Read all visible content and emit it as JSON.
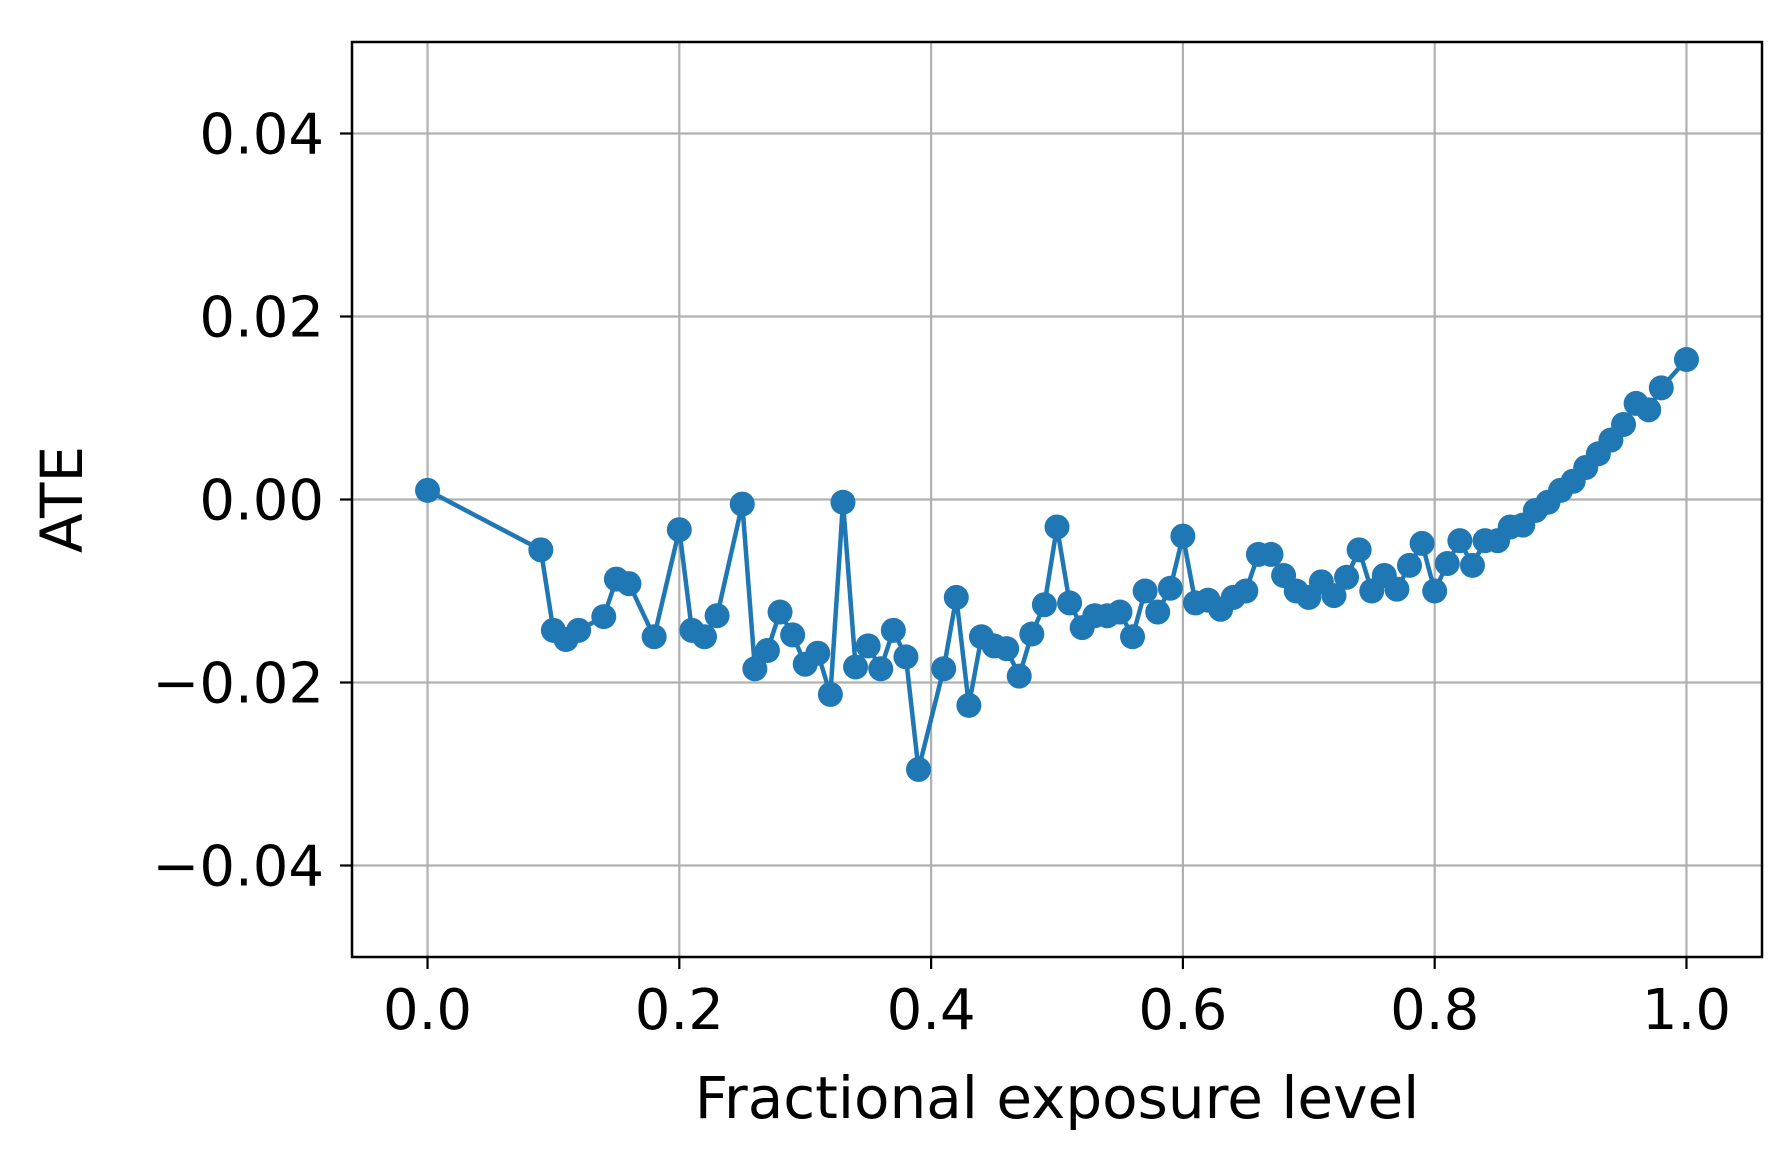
{
  "chart_data": {
    "type": "line",
    "title": "",
    "xlabel": "Fractional exposure level",
    "ylabel": "ATE",
    "xlim": [
      -0.06,
      1.06
    ],
    "ylim": [
      -0.05,
      0.05
    ],
    "xticks": [
      0.0,
      0.2,
      0.4,
      0.6,
      0.8,
      1.0
    ],
    "xtick_labels": [
      "0.0",
      "0.2",
      "0.4",
      "0.6",
      "0.8",
      "1.0"
    ],
    "yticks": [
      -0.04,
      -0.02,
      0.0,
      0.02,
      0.04
    ],
    "ytick_labels": [
      "−0.04",
      "−0.02",
      "0.00",
      "0.02",
      "0.04"
    ],
    "grid": true,
    "legend": "none",
    "series": [
      {
        "color": "#1f77b4",
        "marker": "circle",
        "x": [
          0.0,
          0.09,
          0.1,
          0.11,
          0.12,
          0.14,
          0.15,
          0.16,
          0.18,
          0.2,
          0.21,
          0.22,
          0.23,
          0.25,
          0.26,
          0.27,
          0.28,
          0.29,
          0.3,
          0.31,
          0.32,
          0.33,
          0.34,
          0.35,
          0.36,
          0.37,
          0.38,
          0.39,
          0.41,
          0.42,
          0.43,
          0.44,
          0.45,
          0.46,
          0.47,
          0.48,
          0.49,
          0.5,
          0.51,
          0.52,
          0.53,
          0.54,
          0.55,
          0.56,
          0.57,
          0.58,
          0.59,
          0.6,
          0.61,
          0.62,
          0.63,
          0.64,
          0.65,
          0.66,
          0.67,
          0.68,
          0.69,
          0.7,
          0.71,
          0.72,
          0.73,
          0.74,
          0.75,
          0.76,
          0.77,
          0.78,
          0.79,
          0.8,
          0.81,
          0.82,
          0.83,
          0.84,
          0.85,
          0.86,
          0.87,
          0.88,
          0.89,
          0.9,
          0.91,
          0.92,
          0.93,
          0.94,
          0.95,
          0.96,
          0.97,
          0.98,
          1.0
        ],
        "y": [
          0.001,
          -0.0055,
          -0.0143,
          -0.0153,
          -0.0143,
          -0.0128,
          -0.0087,
          -0.0092,
          -0.015,
          -0.0033,
          -0.0143,
          -0.015,
          -0.0127,
          -0.0005,
          -0.0185,
          -0.0165,
          -0.0123,
          -0.0148,
          -0.018,
          -0.0168,
          -0.0213,
          -0.0003,
          -0.0183,
          -0.016,
          -0.0185,
          -0.0143,
          -0.0172,
          -0.0295,
          -0.0185,
          -0.0107,
          -0.0225,
          -0.015,
          -0.016,
          -0.0163,
          -0.0193,
          -0.0147,
          -0.0115,
          -0.003,
          -0.0113,
          -0.014,
          -0.0127,
          -0.0127,
          -0.0123,
          -0.015,
          -0.01,
          -0.0123,
          -0.0097,
          -0.004,
          -0.0113,
          -0.011,
          -0.012,
          -0.0107,
          -0.01,
          -0.006,
          -0.006,
          -0.0083,
          -0.01,
          -0.0107,
          -0.009,
          -0.0105,
          -0.0085,
          -0.0055,
          -0.01,
          -0.0083,
          -0.0098,
          -0.0072,
          -0.0048,
          -0.01,
          -0.007,
          -0.0045,
          -0.0072,
          -0.0045,
          -0.0045,
          -0.003,
          -0.0028,
          -0.0012,
          -0.0003,
          0.001,
          0.002,
          0.0035,
          0.005,
          0.0065,
          0.0082,
          0.0105,
          0.0098,
          0.0122,
          0.0153
        ]
      }
    ]
  }
}
